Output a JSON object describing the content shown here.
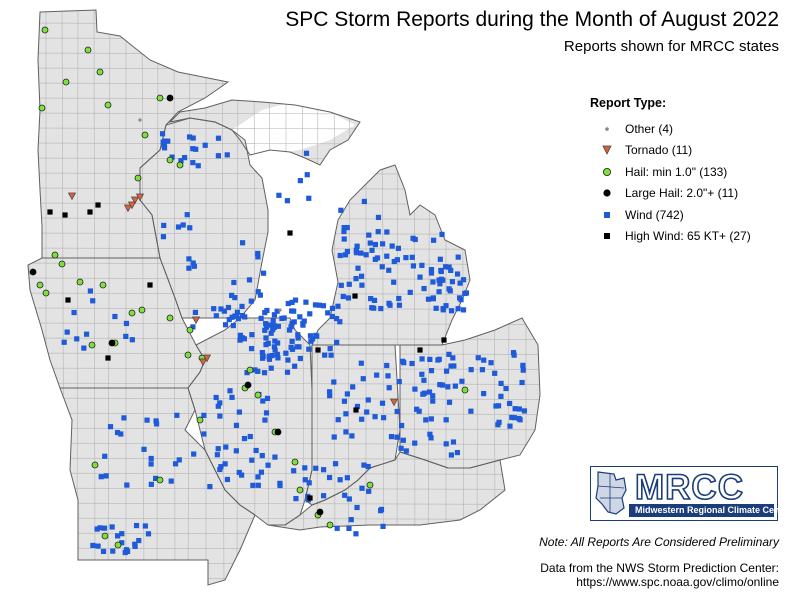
{
  "title": "SPC Storm Reports during the Month of August 2022",
  "subtitle": "Reports shown for MRCC states",
  "legend": {
    "title": "Report Type:",
    "items": [
      {
        "label": "Other (4)",
        "symbol": "dot",
        "color": "#888888"
      },
      {
        "label": "Tornado (11)",
        "symbol": "triangle-down",
        "color": "#d9613c"
      },
      {
        "label": "Hail: min 1.0\" (133)",
        "symbol": "circle",
        "color": "#7ee03a"
      },
      {
        "label": "Large Hail: 2.0\"+ (11)",
        "symbol": "circle",
        "color": "#000000"
      },
      {
        "label": "Wind (742)",
        "symbol": "square",
        "color": "#1f5bd9"
      },
      {
        "label": "High Wind: 65 KT+ (27)",
        "symbol": "square",
        "color": "#000000"
      }
    ]
  },
  "note": "Note: All Reports Are Considered Preliminary",
  "source_line1": "Data from the NWS Storm Prediction Center:",
  "source_line2": "https://www.spc.noaa.gov/climo/online",
  "logo": {
    "text": "MRCC",
    "subtitle": "Midwestern Regional Climate Center"
  },
  "colors": {
    "land": "#e3e3e3",
    "water": "#ffffff",
    "border": "#606060",
    "county": "#b5b5b5"
  }
}
